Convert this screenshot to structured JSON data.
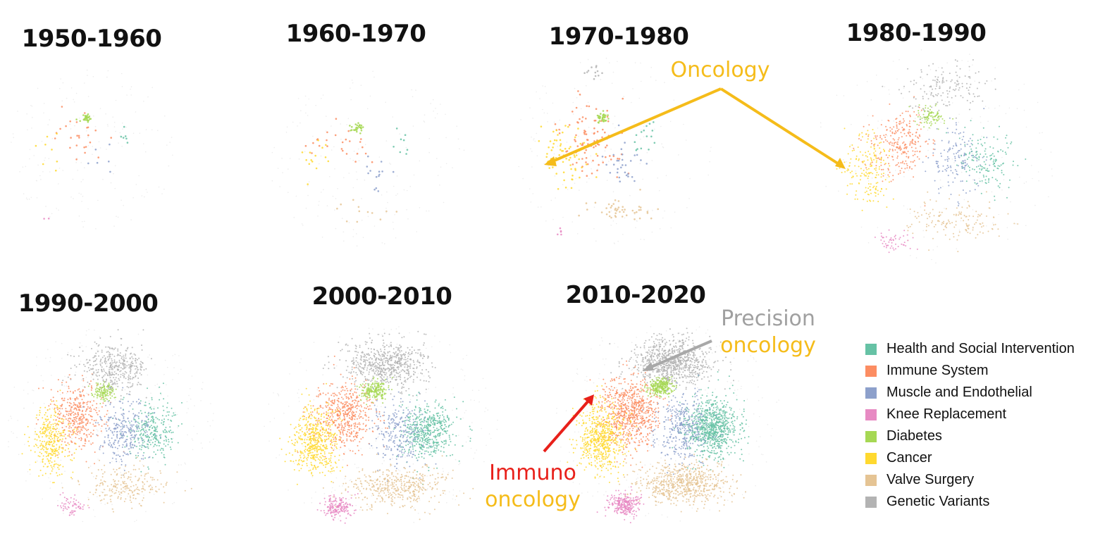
{
  "chart_data": {
    "type": "scatter",
    "panels": [
      {
        "title": "1950-1960",
        "clusters": [
          {
            "category": "Diabetes",
            "n": 30
          },
          {
            "category": "Immune System",
            "n": 25
          },
          {
            "category": "Health and Social Intervention",
            "n": 6
          },
          {
            "category": "Muscle and Endothelial",
            "n": 6
          },
          {
            "category": "Cancer",
            "n": 8
          },
          {
            "category": "Knee Replacement",
            "n": 2
          }
        ]
      },
      {
        "title": "1960-1970",
        "clusters": [
          {
            "category": "Diabetes",
            "n": 28
          },
          {
            "category": "Immune System",
            "n": 25
          },
          {
            "category": "Muscle and Endothelial",
            "n": 14
          },
          {
            "category": "Health and Social Intervention",
            "n": 8
          },
          {
            "category": "Cancer",
            "n": 14
          },
          {
            "category": "Valve Surgery",
            "n": 12
          }
        ]
      },
      {
        "title": "1970-1980",
        "clusters": [
          {
            "category": "Immune System",
            "n": 90
          },
          {
            "category": "Diabetes",
            "n": 35
          },
          {
            "category": "Cancer",
            "n": 70
          },
          {
            "category": "Muscle and Endothelial",
            "n": 30
          },
          {
            "category": "Health and Social Intervention",
            "n": 15
          },
          {
            "category": "Valve Surgery",
            "n": 45
          },
          {
            "category": "Knee Replacement",
            "n": 5
          },
          {
            "category": "Genetic Variants",
            "n": 12
          }
        ]
      },
      {
        "title": "1980-1990",
        "clusters": [
          {
            "category": "Immune System",
            "n": 260
          },
          {
            "category": "Cancer",
            "n": 180
          },
          {
            "category": "Diabetes",
            "n": 90
          },
          {
            "category": "Muscle and Endothelial",
            "n": 150
          },
          {
            "category": "Health and Social Intervention",
            "n": 150
          },
          {
            "category": "Genetic Variants",
            "n": 150
          },
          {
            "category": "Valve Surgery",
            "n": 150
          },
          {
            "category": "Knee Replacement",
            "n": 50
          }
        ]
      },
      {
        "title": "1990-2000",
        "clusters": [
          {
            "category": "Immune System",
            "n": 380
          },
          {
            "category": "Cancer",
            "n": 320
          },
          {
            "category": "Genetic Variants",
            "n": 380
          },
          {
            "category": "Health and Social Intervention",
            "n": 280
          },
          {
            "category": "Muscle and Endothelial",
            "n": 280
          },
          {
            "category": "Diabetes",
            "n": 120
          },
          {
            "category": "Valve Surgery",
            "n": 220
          },
          {
            "category": "Knee Replacement",
            "n": 60
          }
        ]
      },
      {
        "title": "2000-2010",
        "clusters": [
          {
            "category": "Genetic Variants",
            "n": 600
          },
          {
            "category": "Immune System",
            "n": 500
          },
          {
            "category": "Cancer",
            "n": 500
          },
          {
            "category": "Health and Social Intervention",
            "n": 500
          },
          {
            "category": "Diabetes",
            "n": 200
          },
          {
            "category": "Muscle and Endothelial",
            "n": 260
          },
          {
            "category": "Valve Surgery",
            "n": 420
          },
          {
            "category": "Knee Replacement",
            "n": 180
          }
        ]
      },
      {
        "title": "2010-2020",
        "clusters": [
          {
            "category": "Genetic Variants",
            "n": 800
          },
          {
            "category": "Immune System",
            "n": 700
          },
          {
            "category": "Cancer",
            "n": 600
          },
          {
            "category": "Health and Social Intervention",
            "n": 800
          },
          {
            "category": "Diabetes",
            "n": 260
          },
          {
            "category": "Muscle and Endothelial",
            "n": 350
          },
          {
            "category": "Valve Surgery",
            "n": 650
          },
          {
            "category": "Knee Replacement",
            "n": 260
          }
        ]
      }
    ],
    "annotations": [
      {
        "text": "Oncology",
        "color": "#F5BC1A"
      },
      {
        "line1": "Precision",
        "line1_color": "#A0A0A0",
        "line2": "oncology",
        "line2_color": "#F5BC1A"
      },
      {
        "line1": "Immuno",
        "line1_color": "#E8201A",
        "line2": "oncology",
        "line2_color": "#F5BC1A"
      }
    ],
    "legend": [
      {
        "label": "Health and Social Intervention",
        "color": "#66C2A5"
      },
      {
        "label": "Immune System",
        "color": "#FC8D62"
      },
      {
        "label": "Muscle and Endothelial",
        "color": "#8DA0CB"
      },
      {
        "label": "Knee Replacement",
        "color": "#E78AC3"
      },
      {
        "label": "Diabetes",
        "color": "#A6D854"
      },
      {
        "label": "Cancer",
        "color": "#FFD92F"
      },
      {
        "label": "Valve Surgery",
        "color": "#E5C494"
      },
      {
        "label": "Genetic Variants",
        "color": "#B3B3B3"
      }
    ]
  }
}
